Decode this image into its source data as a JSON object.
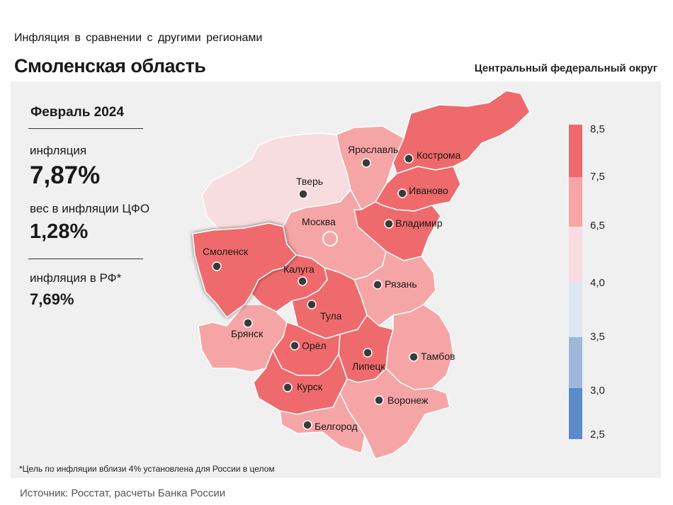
{
  "header": {
    "subtitle": "Инфляция  в сравнении  с другими  регионами",
    "title": "Смоленская область",
    "district": "Центральный федеральный округ"
  },
  "stats": {
    "period": "Февраль 2024",
    "inflation_label": "инфляция",
    "inflation_value": "7,87%",
    "weight_label": "вес в инфляции  ЦФО",
    "weight_value": "1,28%",
    "russia_label": "инфляция  в РФ*",
    "russia_value": "7,69%"
  },
  "legend": {
    "ticks": [
      "8,5",
      "7,5",
      "6,5",
      "4,0",
      "3,5",
      "3,0",
      "2,5"
    ],
    "colors": [
      "#ef6a6c",
      "#f6a5a6",
      "#f7dde0",
      "#dde6f3",
      "#9fb9dc",
      "#5b8cc7"
    ]
  },
  "map": {
    "regions": [
      {
        "name": "Тверь",
        "color": "#f7dde0"
      },
      {
        "name": "Ярославль",
        "color": "#f6a5a6"
      },
      {
        "name": "Кострома",
        "color": "#ef6a6c"
      },
      {
        "name": "Иваново",
        "color": "#ef6a6c"
      },
      {
        "name": "Владимир",
        "color": "#ef6a6c"
      },
      {
        "name": "Москва",
        "color": "#f6a5a6"
      },
      {
        "name": "Смоленск",
        "color": "#ef6a6c"
      },
      {
        "name": "Калуга",
        "color": "#ef6a6c"
      },
      {
        "name": "Тула",
        "color": "#ef6a6c"
      },
      {
        "name": "Рязань",
        "color": "#f6a5a6"
      },
      {
        "name": "Брянск",
        "color": "#f6a5a6"
      },
      {
        "name": "Орёл",
        "color": "#ef6a6c"
      },
      {
        "name": "Липецк",
        "color": "#ef6a6c"
      },
      {
        "name": "Тамбов",
        "color": "#f6a5a6"
      },
      {
        "name": "Курск",
        "color": "#ef6a6c"
      },
      {
        "name": "Воронеж",
        "color": "#f6a5a6"
      },
      {
        "name": "Белгород",
        "color": "#f6a5a6"
      }
    ]
  },
  "footnote": "*Цель по инфляции вблизи 4% установлена для России в целом",
  "source": "Источник: Росстат, расчеты Банка России"
}
